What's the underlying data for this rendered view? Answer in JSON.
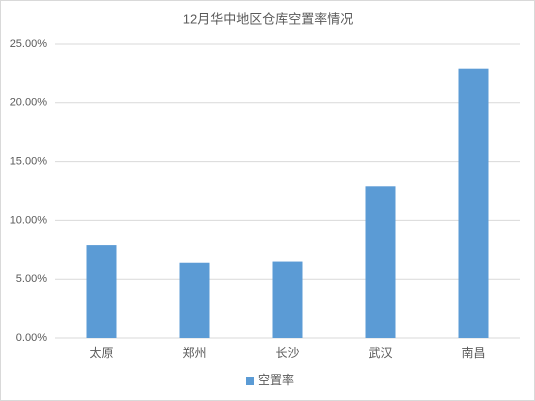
{
  "chart_data": {
    "type": "bar",
    "title": "12月华中地区仓库空置率情况",
    "categories": [
      "太原",
      "郑州",
      "长沙",
      "武汉",
      "南昌"
    ],
    "series": [
      {
        "name": "空置率",
        "color": "#5b9bd5",
        "values": [
          7.9,
          6.4,
          6.5,
          12.9,
          22.9
        ]
      }
    ],
    "ylim": [
      0,
      25
    ],
    "yticks": [
      {
        "value": 0,
        "label": "0.00%"
      },
      {
        "value": 5,
        "label": "5.00%"
      },
      {
        "value": 10,
        "label": "10.00%"
      },
      {
        "value": 15,
        "label": "15.00%"
      },
      {
        "value": 20,
        "label": "20.00%"
      },
      {
        "value": 25,
        "label": "25.00%"
      }
    ],
    "grid": true,
    "legend": "bottom"
  }
}
